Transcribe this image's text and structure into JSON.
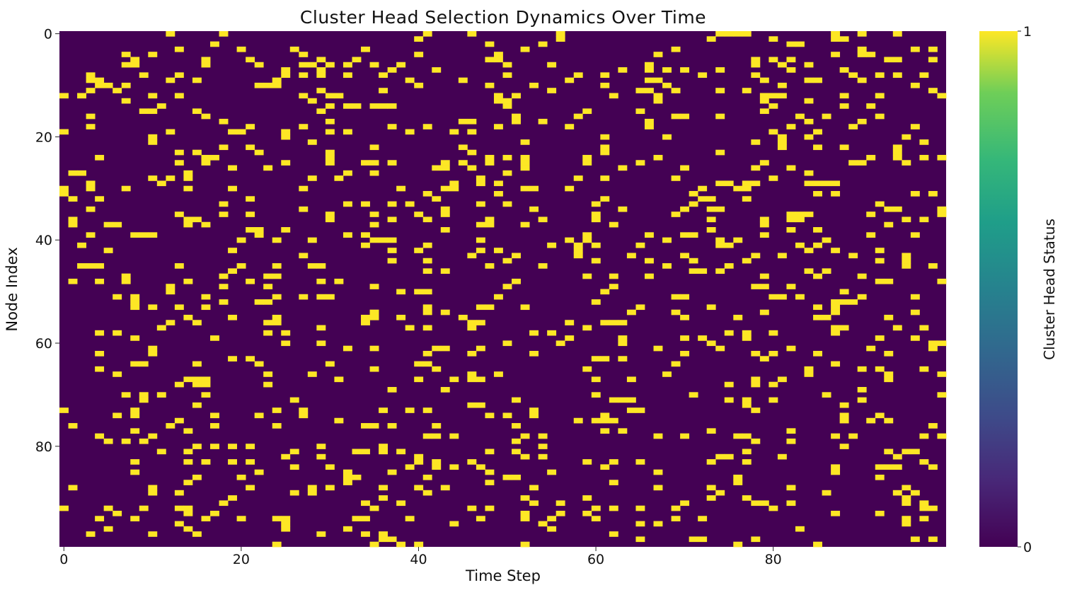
{
  "chart_data": {
    "type": "heatmap",
    "title": "Cluster Head Selection Dynamics Over Time",
    "xlabel": "Time Step",
    "ylabel": "Node Index",
    "colorbar_label": "Cluster Head Status",
    "x_range": [
      0,
      100
    ],
    "y_range": [
      0,
      100
    ],
    "x_ticks": [
      0,
      20,
      40,
      60,
      80
    ],
    "y_ticks": [
      0,
      20,
      40,
      60,
      80
    ],
    "colorbar_ticks": [
      0,
      1
    ],
    "value_range": [
      0,
      1
    ],
    "colormap": "viridis",
    "color_low": "#440154",
    "color_high": "#fde725",
    "grid": false,
    "n_time_steps": 100,
    "n_nodes": 100,
    "active_fraction": 0.1,
    "values_note": "Binary matrix: 1 = node selected as cluster head at that time step, 0 = not selected; roughly 10% of cells are 1, scattered with no clear pattern."
  }
}
